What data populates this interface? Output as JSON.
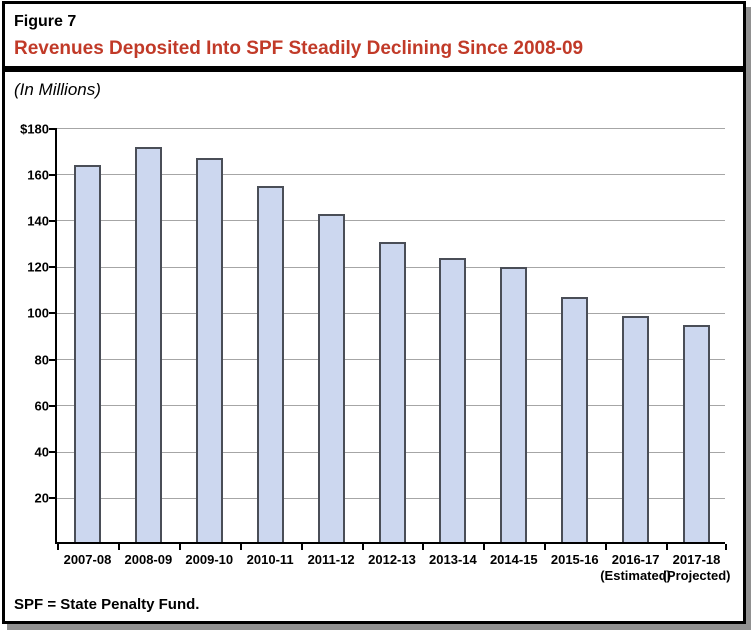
{
  "figure": {
    "label": "Figure 7",
    "title": "Revenues Deposited Into SPF Steadily Declining Since 2008-09",
    "subtitle": "(In Millions)",
    "footnote": "SPF = State Penalty Fund."
  },
  "colors": {
    "title_red": "#c13a28",
    "bar_fill": "#ccd7ef",
    "bar_border": "#4a4e57",
    "gridline": "#a6a6a6",
    "axis": "#000000",
    "shadow": "#919191"
  },
  "chart_data": {
    "type": "bar",
    "title": "Revenues Deposited Into SPF Steadily Declining Since 2008-09",
    "units": "In Millions",
    "categories": [
      "2007-08",
      "2008-09",
      "2009-10",
      "2010-11",
      "2011-12",
      "2012-13",
      "2013-14",
      "2014-15",
      "2015-16",
      "2016-17",
      "2017-18"
    ],
    "category_sublabels": [
      "",
      "",
      "",
      "",
      "",
      "",
      "",
      "",
      "",
      "(Estimated)",
      "(Projected)"
    ],
    "values": [
      163,
      171,
      166,
      154,
      142,
      130,
      123,
      119,
      106,
      98,
      94
    ],
    "ylim": [
      0,
      180
    ],
    "ytick_interval": 20,
    "ytick_values": [
      180,
      160,
      140,
      120,
      100,
      80,
      60,
      40,
      20
    ],
    "ytick_labels": [
      "$180",
      "160",
      "140",
      "120",
      "100",
      "80",
      "60",
      "40",
      "20"
    ],
    "grid": true,
    "legend": false,
    "xlabel": "",
    "ylabel": ""
  }
}
